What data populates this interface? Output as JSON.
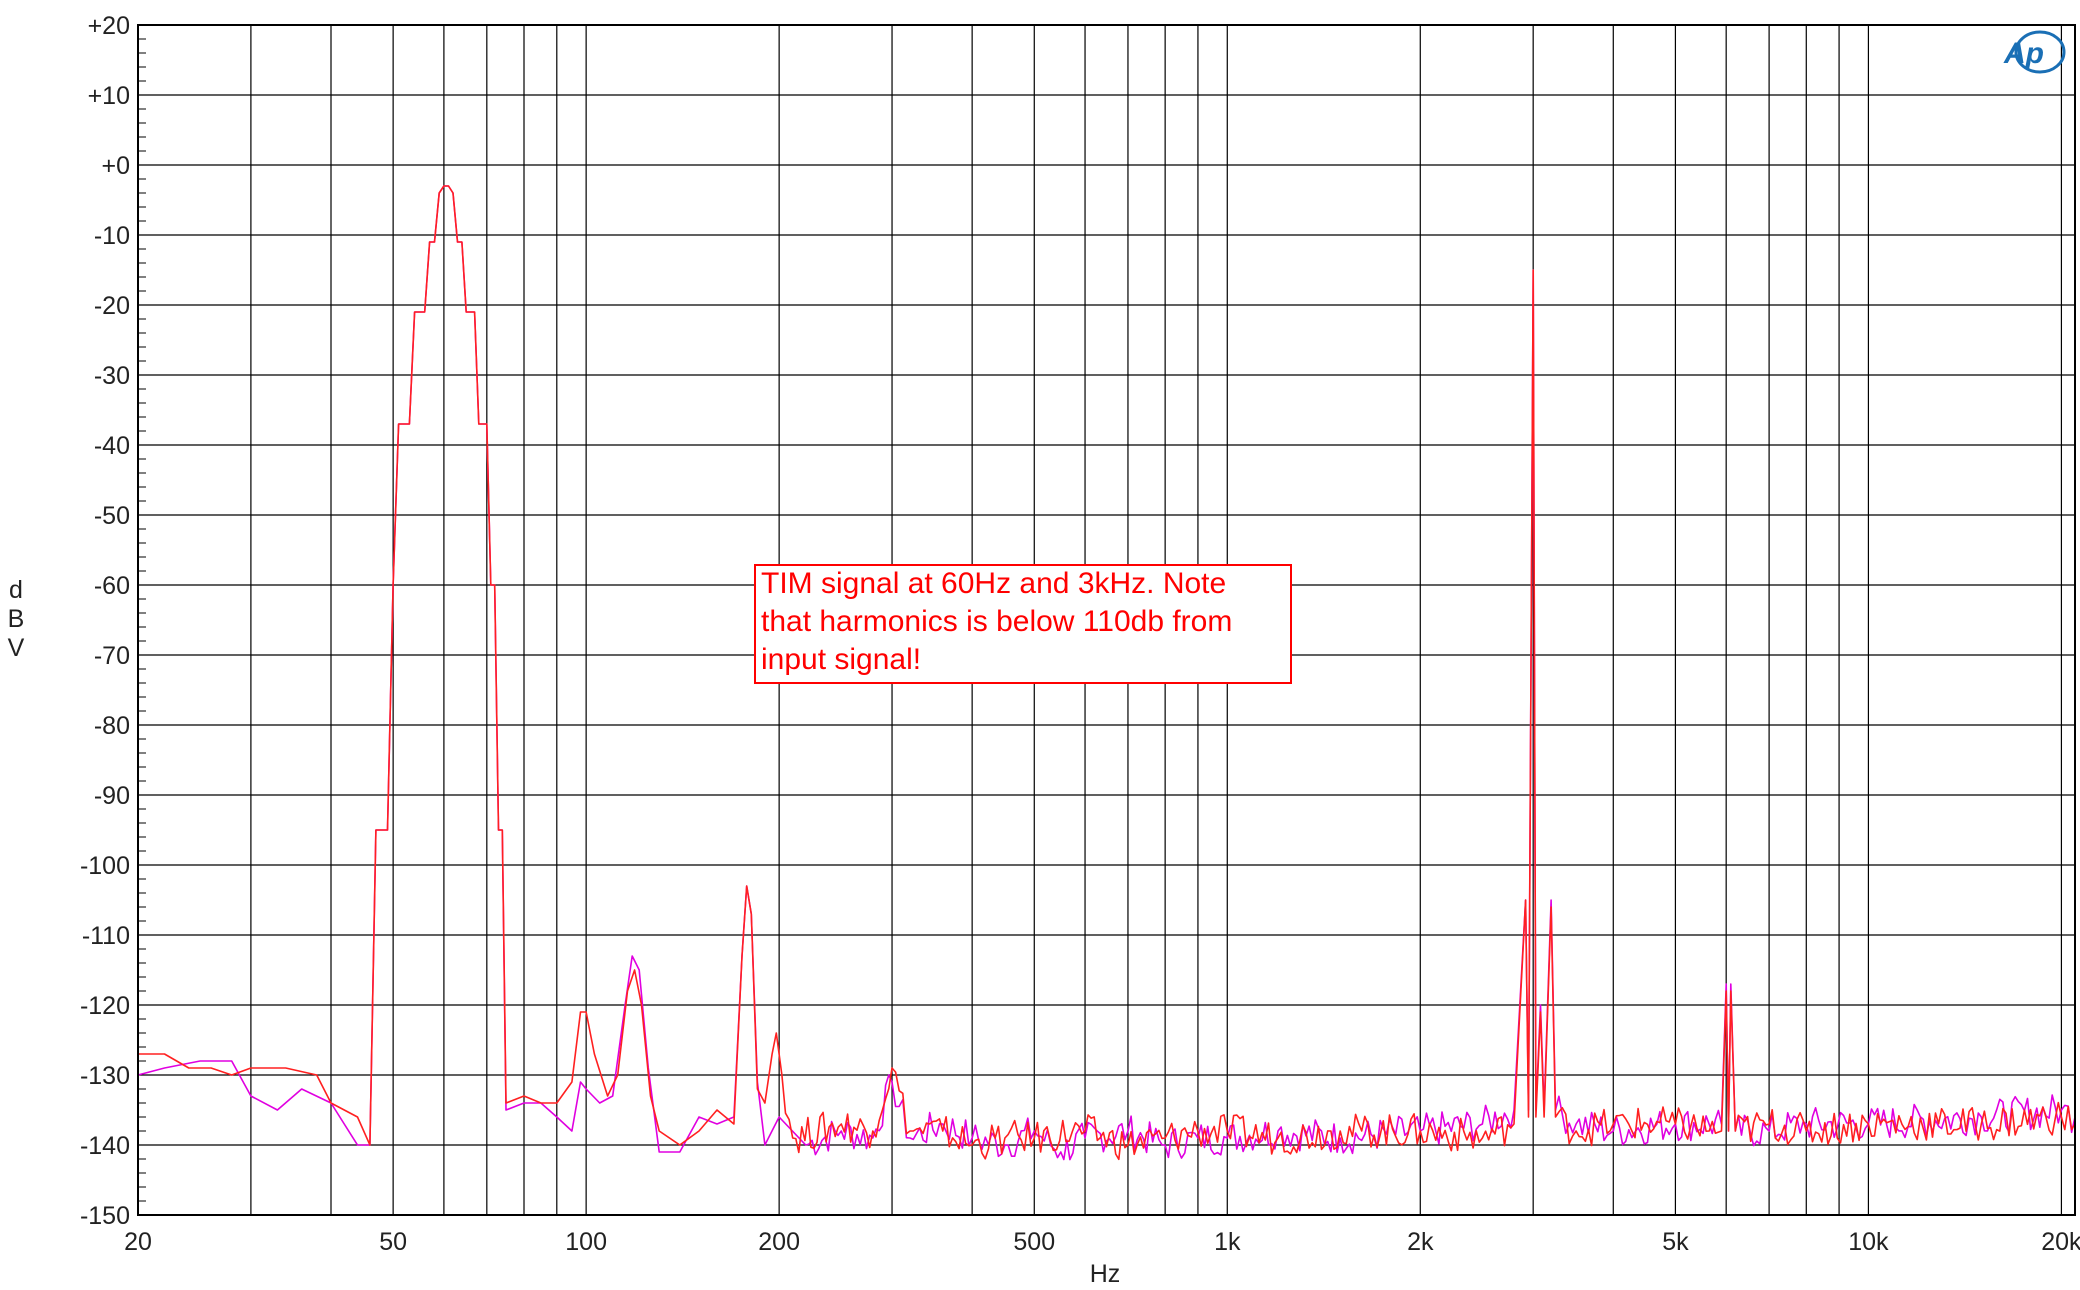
{
  "chart_data": {
    "type": "line",
    "title": "",
    "xlabel": "Hz",
    "ylabel": "dBV",
    "x_scale": "log",
    "xlim": [
      20,
      21000
    ],
    "ylim": [
      -150,
      20
    ],
    "grid": true,
    "y_ticks": [
      20,
      10,
      0,
      -10,
      -20,
      -30,
      -40,
      -50,
      -60,
      -70,
      -80,
      -90,
      -100,
      -110,
      -120,
      -130,
      -140,
      -150
    ],
    "y_tick_labels": [
      "+20",
      "+10",
      "+0",
      "-10",
      "-20",
      "-30",
      "-40",
      "-50",
      "-60",
      "-70",
      "-80",
      "-90",
      "-100",
      "-110",
      "-120",
      "-130",
      "-140",
      "-150"
    ],
    "x_major_ticks": [
      20,
      50,
      100,
      200,
      500,
      1000,
      2000,
      5000,
      10000,
      20000
    ],
    "x_tick_labels": [
      "20",
      "50",
      "100",
      "200",
      "500",
      "1k",
      "2k",
      "5k",
      "10k",
      "20k"
    ],
    "x_minor_grid": [
      30,
      40,
      60,
      70,
      80,
      90,
      300,
      400,
      600,
      700,
      800,
      900,
      3000,
      4000,
      6000,
      7000,
      8000,
      9000
    ],
    "annotation": {
      "lines": [
        "TIM signal at 60Hz and 3kHz.  Note",
        "that harmonics is below 110db from",
        "input signal!"
      ],
      "color": "#ff0000"
    },
    "series": [
      {
        "color": "#e000e0",
        "points": [
          [
            20,
            -130
          ],
          [
            22,
            -129
          ],
          [
            25,
            -128
          ],
          [
            28,
            -128
          ],
          [
            30,
            -133
          ],
          [
            33,
            -135
          ],
          [
            36,
            -132
          ],
          [
            40,
            -134
          ],
          [
            44,
            -140
          ],
          [
            46,
            -140
          ],
          [
            47,
            -95
          ],
          [
            49,
            -95
          ],
          [
            50,
            -60
          ],
          [
            51,
            -37
          ],
          [
            53,
            -37
          ],
          [
            54,
            -21
          ],
          [
            56,
            -21
          ],
          [
            57,
            -11
          ],
          [
            58,
            -11
          ],
          [
            59,
            -4
          ],
          [
            60,
            -3
          ],
          [
            61,
            -3
          ],
          [
            62,
            -4
          ],
          [
            63,
            -11
          ],
          [
            64,
            -11
          ],
          [
            65,
            -21
          ],
          [
            67,
            -21
          ],
          [
            68,
            -37
          ],
          [
            70,
            -37
          ],
          [
            71,
            -60
          ],
          [
            72,
            -60
          ],
          [
            73,
            -95
          ],
          [
            74,
            -95
          ],
          [
            75,
            -135
          ],
          [
            80,
            -134
          ],
          [
            85,
            -134
          ],
          [
            90,
            -136
          ],
          [
            95,
            -138
          ],
          [
            98,
            -131
          ],
          [
            100,
            -132
          ],
          [
            105,
            -134
          ],
          [
            110,
            -133
          ],
          [
            115,
            -120
          ],
          [
            118,
            -113
          ],
          [
            121,
            -115
          ],
          [
            125,
            -129
          ],
          [
            130,
            -141
          ],
          [
            140,
            -141
          ],
          [
            150,
            -136
          ],
          [
            160,
            -137
          ],
          [
            170,
            -136
          ],
          [
            175,
            -113
          ],
          [
            178,
            -103
          ],
          [
            181,
            -107
          ],
          [
            185,
            -131
          ],
          [
            190,
            -140
          ],
          [
            200,
            -136
          ],
          [
            220,
            -140
          ],
          [
            250,
            -138
          ],
          [
            280,
            -139
          ],
          [
            300,
            -131
          ],
          [
            320,
            -139
          ],
          [
            360,
            -137
          ],
          [
            400,
            -139
          ],
          [
            450,
            -140
          ],
          [
            500,
            -138
          ],
          [
            550,
            -141
          ],
          [
            600,
            -139
          ],
          [
            700,
            -138
          ],
          [
            800,
            -140
          ],
          [
            900,
            -139
          ],
          [
            1000,
            -139
          ],
          [
            1200,
            -138
          ],
          [
            1500,
            -139
          ],
          [
            2000,
            -138
          ],
          [
            2500,
            -137
          ],
          [
            2800,
            -135
          ],
          [
            2920,
            -105
          ],
          [
            2950,
            -135
          ],
          [
            3000,
            -15
          ],
          [
            3030,
            -135
          ],
          [
            3080,
            -120
          ],
          [
            3120,
            -135
          ],
          [
            3200,
            -105
          ],
          [
            3250,
            -135
          ],
          [
            3500,
            -137
          ],
          [
            4000,
            -138
          ],
          [
            5000,
            -137
          ],
          [
            5900,
            -137
          ],
          [
            6000,
            -117
          ],
          [
            6050,
            -138
          ],
          [
            6100,
            -117
          ],
          [
            6200,
            -138
          ],
          [
            7000,
            -138
          ],
          [
            8000,
            -137
          ],
          [
            10000,
            -137
          ],
          [
            15000,
            -136
          ],
          [
            20000,
            -135
          ],
          [
            21000,
            -136
          ]
        ]
      },
      {
        "color": "#ff2020",
        "points": [
          [
            20,
            -127
          ],
          [
            22,
            -127
          ],
          [
            24,
            -129
          ],
          [
            26,
            -129
          ],
          [
            28,
            -130
          ],
          [
            30,
            -129
          ],
          [
            34,
            -129
          ],
          [
            38,
            -130
          ],
          [
            40,
            -134
          ],
          [
            44,
            -136
          ],
          [
            46,
            -140
          ],
          [
            47,
            -95
          ],
          [
            49,
            -95
          ],
          [
            50,
            -60
          ],
          [
            51,
            -37
          ],
          [
            53,
            -37
          ],
          [
            54,
            -21
          ],
          [
            56,
            -21
          ],
          [
            57,
            -11
          ],
          [
            58,
            -11
          ],
          [
            59,
            -4
          ],
          [
            60,
            -3
          ],
          [
            61,
            -3
          ],
          [
            62,
            -4
          ],
          [
            63,
            -11
          ],
          [
            64,
            -11
          ],
          [
            65,
            -21
          ],
          [
            67,
            -21
          ],
          [
            68,
            -37
          ],
          [
            70,
            -37
          ],
          [
            71,
            -60
          ],
          [
            72,
            -60
          ],
          [
            73,
            -95
          ],
          [
            74,
            -95
          ],
          [
            75,
            -134
          ],
          [
            80,
            -133
          ],
          [
            85,
            -134
          ],
          [
            90,
            -134
          ],
          [
            95,
            -131
          ],
          [
            98,
            -121
          ],
          [
            100,
            -121
          ],
          [
            103,
            -127
          ],
          [
            108,
            -133
          ],
          [
            112,
            -130
          ],
          [
            116,
            -118
          ],
          [
            119,
            -115
          ],
          [
            122,
            -120
          ],
          [
            126,
            -133
          ],
          [
            130,
            -138
          ],
          [
            140,
            -140
          ],
          [
            150,
            -138
          ],
          [
            160,
            -135
          ],
          [
            170,
            -137
          ],
          [
            175,
            -113
          ],
          [
            178,
            -103
          ],
          [
            181,
            -107
          ],
          [
            185,
            -132
          ],
          [
            190,
            -134
          ],
          [
            195,
            -127
          ],
          [
            198,
            -124
          ],
          [
            202,
            -130
          ],
          [
            210,
            -139
          ],
          [
            250,
            -137
          ],
          [
            280,
            -138
          ],
          [
            300,
            -129
          ],
          [
            320,
            -138
          ],
          [
            360,
            -138
          ],
          [
            400,
            -140
          ],
          [
            450,
            -139
          ],
          [
            500,
            -139
          ],
          [
            600,
            -138
          ],
          [
            700,
            -140
          ],
          [
            800,
            -139
          ],
          [
            900,
            -138
          ],
          [
            1000,
            -138
          ],
          [
            1200,
            -139
          ],
          [
            1500,
            -138
          ],
          [
            2000,
            -138
          ],
          [
            2500,
            -139
          ],
          [
            2800,
            -137
          ],
          [
            2920,
            -105
          ],
          [
            2950,
            -136
          ],
          [
            3000,
            -15
          ],
          [
            3030,
            -136
          ],
          [
            3080,
            -121
          ],
          [
            3120,
            -136
          ],
          [
            3200,
            -106
          ],
          [
            3250,
            -136
          ],
          [
            3500,
            -138
          ],
          [
            4000,
            -137
          ],
          [
            5000,
            -137
          ],
          [
            5900,
            -138
          ],
          [
            6000,
            -118
          ],
          [
            6050,
            -138
          ],
          [
            6100,
            -118
          ],
          [
            6200,
            -138
          ],
          [
            7000,
            -137
          ],
          [
            8000,
            -138
          ],
          [
            10000,
            -137
          ],
          [
            15000,
            -137
          ],
          [
            20000,
            -136
          ],
          [
            21000,
            -137
          ]
        ]
      }
    ]
  },
  "logo": {
    "text": "Ap"
  }
}
